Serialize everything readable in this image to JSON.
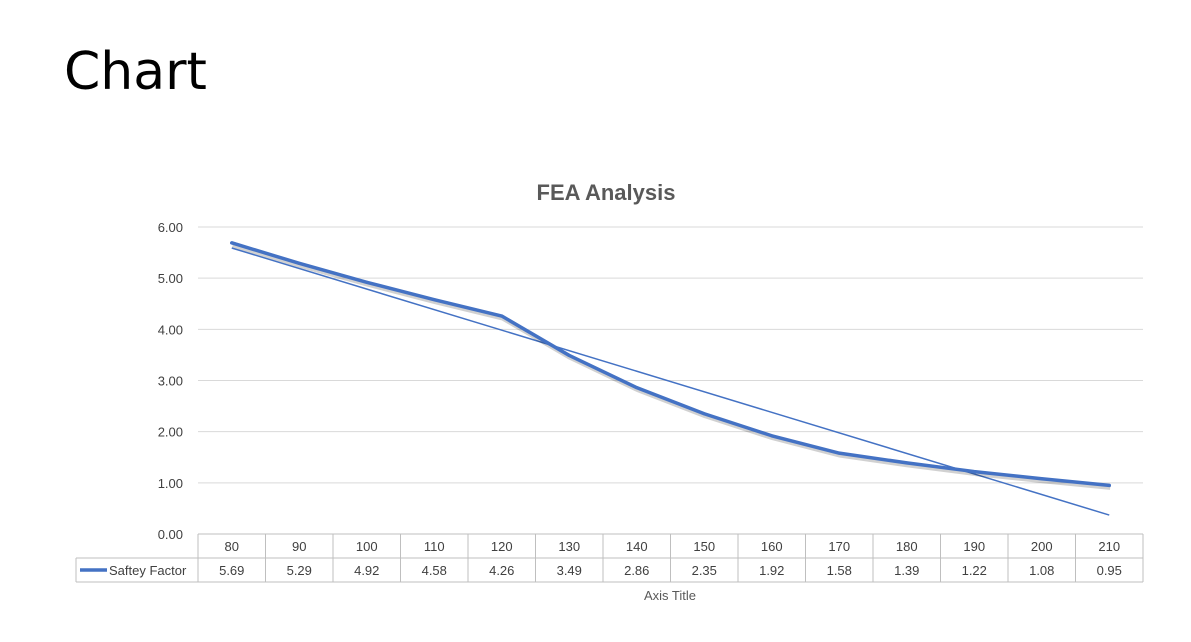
{
  "slide": {
    "title": "Chart"
  },
  "chart_data": {
    "type": "line",
    "title": "FEA Analysis",
    "xlabel": "Axis Title",
    "ylabel": "",
    "ylim": [
      0,
      6
    ],
    "yticks": [
      "0.00",
      "1.00",
      "2.00",
      "3.00",
      "4.00",
      "5.00",
      "6.00"
    ],
    "categories": [
      "80",
      "90",
      "100",
      "110",
      "120",
      "130",
      "140",
      "150",
      "160",
      "170",
      "180",
      "190",
      "200",
      "210"
    ],
    "series": [
      {
        "name": "Saftey Factor",
        "values": [
          5.69,
          5.29,
          4.92,
          4.58,
          4.26,
          3.49,
          2.86,
          2.35,
          1.92,
          1.58,
          1.39,
          1.22,
          1.08,
          0.95
        ],
        "value_labels": [
          "5.69",
          "5.29",
          "4.92",
          "4.58",
          "4.26",
          "3.49",
          "2.86",
          "2.35",
          "1.92",
          "1.58",
          "1.39",
          "1.22",
          "1.08",
          "0.95"
        ],
        "color": "#4472c4",
        "trendline": {
          "type": "linear",
          "start": 5.59,
          "end": 0.37
        }
      }
    ],
    "grid": true,
    "data_table": true
  }
}
